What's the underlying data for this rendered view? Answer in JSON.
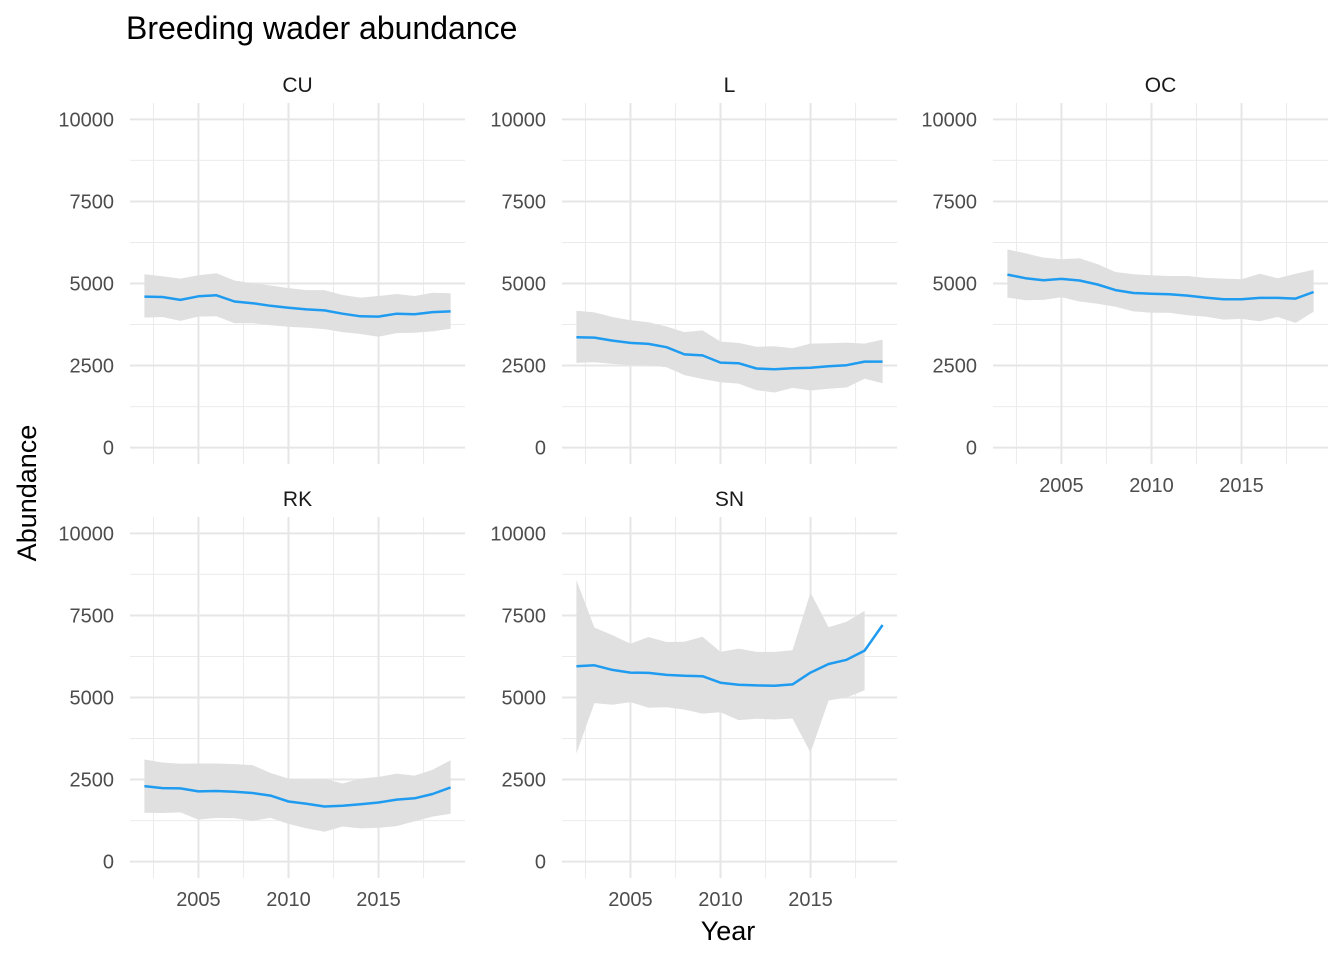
{
  "chart_data": {
    "type": "line",
    "title": "Breeding wader abundance",
    "xlabel": "Year",
    "ylabel": "Abundance",
    "xlim": [
      2001.2,
      2019.8
    ],
    "ylim": [
      -500,
      10500
    ],
    "x_ticks": [
      2005,
      2010,
      2015
    ],
    "y_ticks": [
      0,
      2500,
      5000,
      7500,
      10000
    ],
    "grid": true,
    "line_color": "#1f9bf0",
    "ribbon_color": "#e0e0e0",
    "x": [
      2002,
      2003,
      2004,
      2005,
      2006,
      2007,
      2008,
      2009,
      2010,
      2011,
      2012,
      2013,
      2014,
      2015,
      2016,
      2017,
      2018,
      2019
    ],
    "panels": [
      {
        "name": "CU",
        "values": [
          4600,
          4590,
          4500,
          4610,
          4640,
          4450,
          4400,
          4320,
          4260,
          4210,
          4180,
          4080,
          4000,
          3990,
          4080,
          4060,
          4130,
          4150
        ],
        "lower": [
          3960,
          3980,
          3860,
          3990,
          4000,
          3790,
          3790,
          3730,
          3680,
          3650,
          3610,
          3520,
          3460,
          3380,
          3490,
          3500,
          3540,
          3620
        ],
        "upper": [
          5280,
          5220,
          5150,
          5250,
          5310,
          5090,
          5010,
          4940,
          4860,
          4800,
          4800,
          4650,
          4570,
          4620,
          4680,
          4620,
          4720,
          4700
        ]
      },
      {
        "name": "L",
        "values": [
          3360,
          3350,
          3260,
          3190,
          3160,
          3060,
          2840,
          2810,
          2590,
          2570,
          2410,
          2390,
          2420,
          2430,
          2480,
          2510,
          2620,
          2620
        ],
        "lower": [
          2580,
          2600,
          2550,
          2520,
          2510,
          2450,
          2210,
          2090,
          1990,
          1950,
          1750,
          1680,
          1820,
          1740,
          1790,
          1830,
          2100,
          1960
        ],
        "upper": [
          4170,
          4120,
          3980,
          3880,
          3820,
          3690,
          3520,
          3570,
          3230,
          3190,
          3070,
          3090,
          3030,
          3170,
          3180,
          3200,
          3170,
          3290
        ]
      },
      {
        "name": "OC",
        "values": [
          5270,
          5160,
          5100,
          5140,
          5090,
          4970,
          4800,
          4710,
          4690,
          4670,
          4630,
          4570,
          4520,
          4520,
          4560,
          4560,
          4540,
          4740
        ],
        "lower": [
          4570,
          4490,
          4500,
          4580,
          4450,
          4380,
          4290,
          4150,
          4110,
          4110,
          4030,
          3990,
          3900,
          3920,
          3850,
          3980,
          3800,
          4140
        ],
        "upper": [
          6040,
          5920,
          5790,
          5740,
          5770,
          5590,
          5350,
          5280,
          5250,
          5230,
          5230,
          5170,
          5150,
          5130,
          5300,
          5160,
          5300,
          5420
        ]
      },
      {
        "name": "RK",
        "values": [
          2300,
          2240,
          2230,
          2140,
          2150,
          2130,
          2090,
          2010,
          1830,
          1760,
          1680,
          1700,
          1750,
          1800,
          1890,
          1930,
          2060,
          2260
        ],
        "lower": [
          1490,
          1480,
          1500,
          1280,
          1330,
          1320,
          1240,
          1330,
          1150,
          1010,
          910,
          1070,
          1010,
          1030,
          1080,
          1230,
          1370,
          1460
        ],
        "upper": [
          3110,
          3020,
          2980,
          2990,
          2990,
          2970,
          2940,
          2700,
          2530,
          2510,
          2520,
          2380,
          2530,
          2580,
          2680,
          2620,
          2800,
          3090
        ]
      },
      {
        "name": "SN",
        "values": [
          5950,
          5980,
          5840,
          5760,
          5750,
          5690,
          5660,
          5650,
          5450,
          5390,
          5370,
          5360,
          5400,
          5760,
          6020,
          6150,
          6430,
          7210
        ],
        "lower": [
          3290,
          4830,
          4780,
          4860,
          4690,
          4700,
          4630,
          4510,
          4550,
          4310,
          4350,
          4330,
          4360,
          3320,
          4910,
          5000,
          5220,
          null
        ],
        "upper": [
          8580,
          7130,
          6900,
          6640,
          6840,
          6690,
          6700,
          6850,
          6390,
          6490,
          6390,
          6390,
          6440,
          8200,
          7140,
          7310,
          7640,
          null
        ]
      }
    ]
  }
}
